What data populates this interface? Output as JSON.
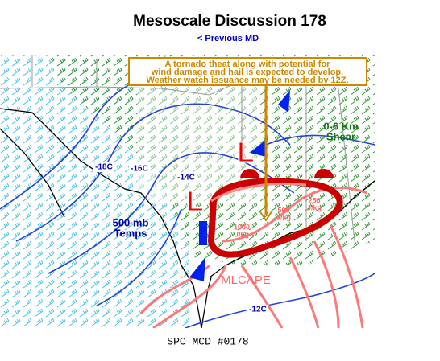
{
  "header": {
    "title": "Mesoscale Discussion 178",
    "previous_link": "< Previous MD"
  },
  "map": {
    "annotation": [
      "A tornado theat along with potential for",
      "wind damage and hail is expected to develop.",
      "Weather watch issuance may be needed by 12Z."
    ],
    "shear_label": [
      "0-6 Km",
      "Shear"
    ],
    "temp_labels": [
      "-18C",
      "-16C",
      "-14C",
      "-12C"
    ],
    "temps_label": [
      "500 mb",
      "Temps"
    ],
    "cape_labels": [
      [
        "1000",
        "J/kg"
      ],
      [
        "500",
        "J/kg"
      ],
      [
        "250",
        "J/kg"
      ]
    ],
    "cape_title": "MLCAPE",
    "lows": [
      "L",
      "L"
    ]
  },
  "footer": "SPC MCD #0178"
}
